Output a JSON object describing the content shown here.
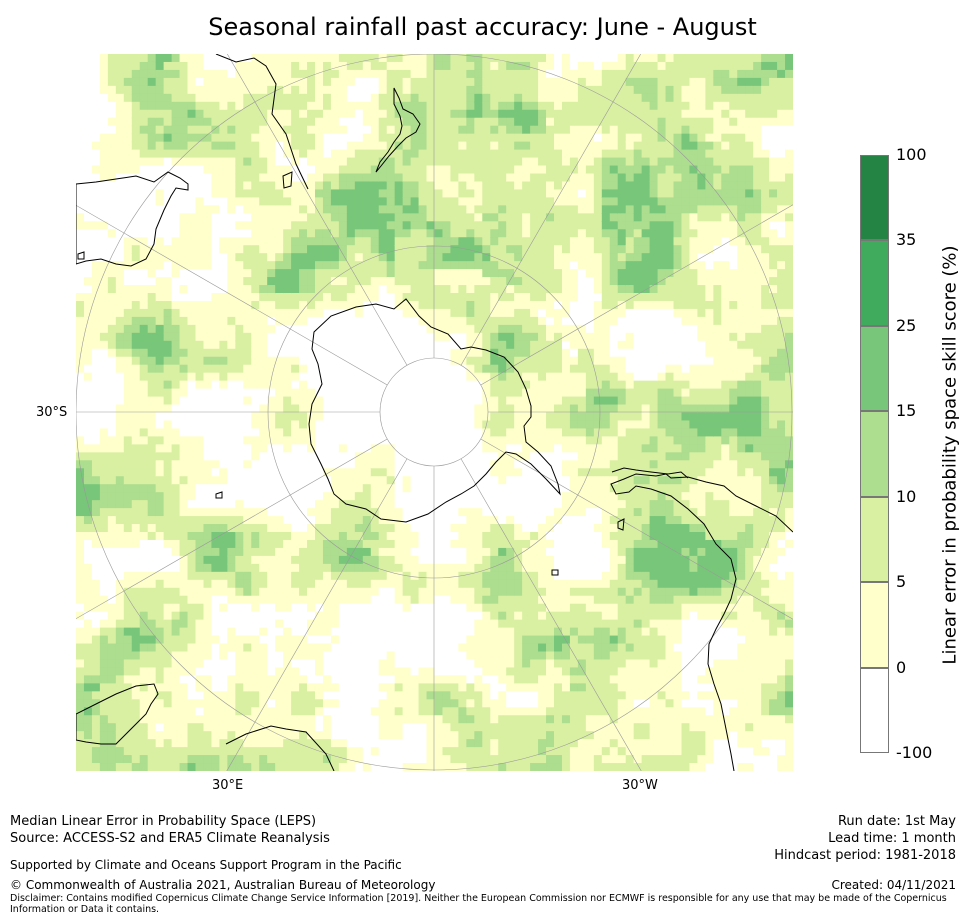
{
  "title": "Seasonal rainfall past accuracy: June - August",
  "map": {
    "projection": "south-polar-stereographic",
    "tick_labels": {
      "left": "30°S",
      "bottom_left": "30°E",
      "bottom_right": "30°W"
    },
    "colors": {
      "land_outline": "#000000",
      "graticule": "#9a9a9a"
    }
  },
  "colorbar": {
    "title": "Linear error in probability space skill score (%)",
    "tick_labels": [
      "100",
      "35",
      "25",
      "15",
      "10",
      "5",
      "0",
      "-100"
    ],
    "bins": [
      {
        "from": -100,
        "to": 0,
        "color": "#ffffff"
      },
      {
        "from": 0,
        "to": 5,
        "color": "#ffffcc"
      },
      {
        "from": 5,
        "to": 10,
        "color": "#d9f0a3"
      },
      {
        "from": 10,
        "to": 15,
        "color": "#addd8e"
      },
      {
        "from": 15,
        "to": 25,
        "color": "#78c679"
      },
      {
        "from": 25,
        "to": 35,
        "color": "#41ab5d"
      },
      {
        "from": 35,
        "to": 100,
        "color": "#238443"
      }
    ]
  },
  "footer": {
    "metric": "Median Linear Error in Probability Space (LEPS)",
    "source": "Source: ACCESS-S2 and ERA5 Climate Reanalysis",
    "support": "Supported by Climate and Oceans Support Program in the Pacific",
    "copyright": "© Commonwealth of Australia 2021, Australian Bureau of Meteorology",
    "disclaimer": "Disclaimer: Contains modified Copernicus Climate Change Service Information [2019]. Neither the European Commission nor ECMWF is responsible for any use that may be made of the Copernicus Information or Data it contains.",
    "run_date": "Run date: 1st May",
    "lead_time": "Lead time: 1 month",
    "hindcast": "Hindcast period: 1981-2018",
    "created": "Created: 04/11/2021"
  }
}
